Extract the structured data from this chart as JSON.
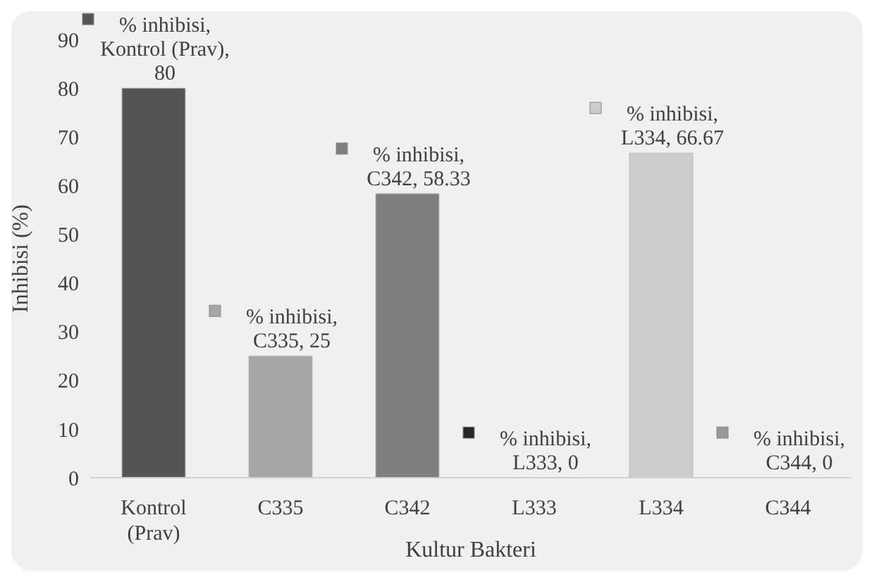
{
  "chart_data": {
    "type": "bar",
    "xlabel": "Kultur Bakteri",
    "ylabel": "Inhibisi (%)",
    "categories": [
      "Kontrol (Prav)",
      "C335",
      "C342",
      "L333",
      "L334",
      "C344"
    ],
    "values": [
      80,
      25,
      58.33,
      0,
      66.67,
      0
    ],
    "colors": [
      "#555555",
      "#a6a6a6",
      "#7f7f7f",
      "#262626",
      "#cccccc",
      "#999999"
    ],
    "value_labels": [
      "% inhibisi, Kontrol (Prav), 80",
      "% inhibisi, C335, 25",
      "% inhibisi, C342, 58.33",
      "% inhibisi, L333, 0",
      "% inhibisi, L334, 66.67",
      "% inhibisi, C344, 0"
    ],
    "ylim": [
      0,
      90
    ],
    "yticks": [
      0,
      10,
      20,
      30,
      40,
      50,
      60,
      70,
      80,
      90
    ],
    "grid": false,
    "legend": false
  }
}
